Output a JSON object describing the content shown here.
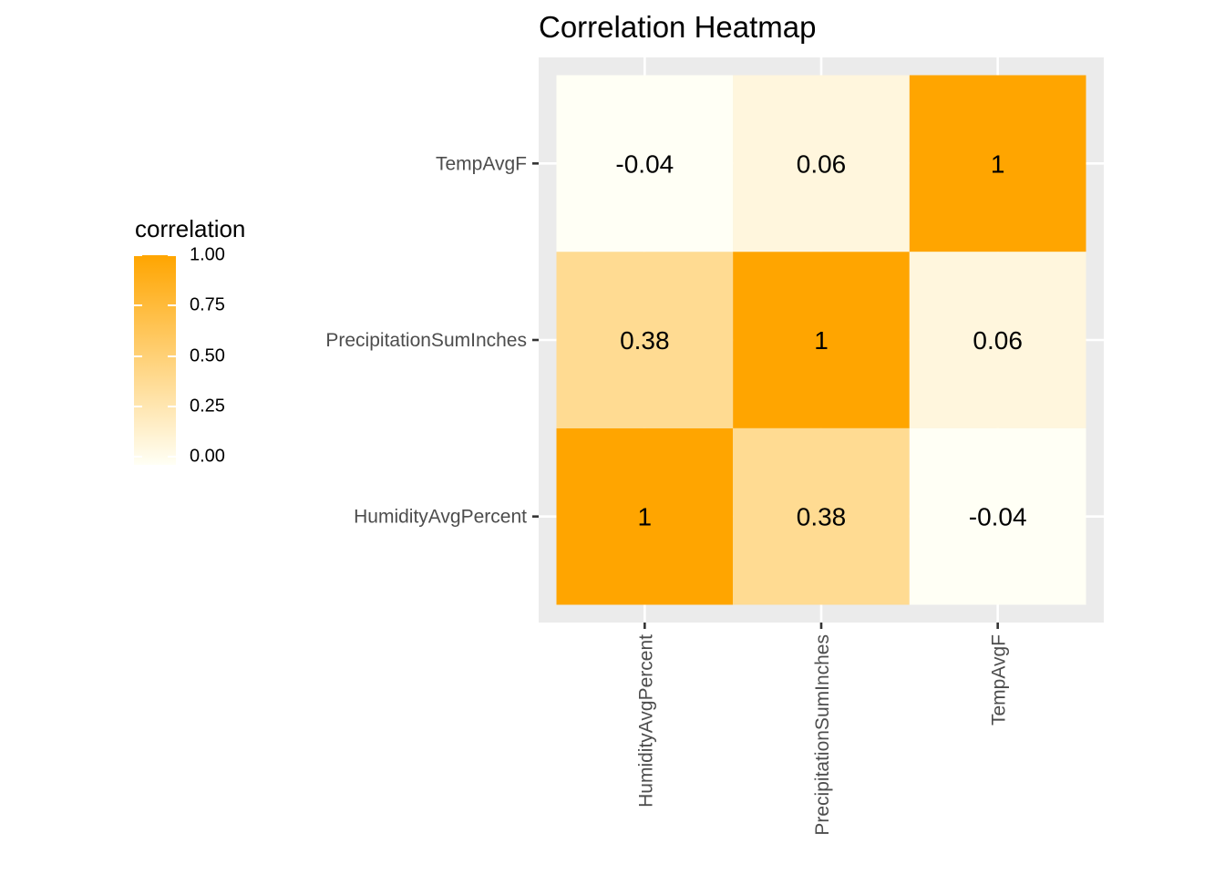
{
  "chart_data": {
    "type": "heatmap",
    "title": "Correlation Heatmap",
    "x_categories": [
      "HumidityAvgPercent",
      "PrecipitationSumInches",
      "TempAvgF"
    ],
    "y_categories": [
      "HumidityAvgPercent",
      "PrecipitationSumInches",
      "TempAvgF"
    ],
    "cells": [
      {
        "x": "HumidityAvgPercent",
        "y": "HumidityAvgPercent",
        "value": 1,
        "label": "1"
      },
      {
        "x": "PrecipitationSumInches",
        "y": "HumidityAvgPercent",
        "value": 0.38,
        "label": "0.38"
      },
      {
        "x": "TempAvgF",
        "y": "HumidityAvgPercent",
        "value": -0.04,
        "label": "-0.04"
      },
      {
        "x": "HumidityAvgPercent",
        "y": "PrecipitationSumInches",
        "value": 0.38,
        "label": "0.38"
      },
      {
        "x": "PrecipitationSumInches",
        "y": "PrecipitationSumInches",
        "value": 1,
        "label": "1"
      },
      {
        "x": "TempAvgF",
        "y": "PrecipitationSumInches",
        "value": 0.06,
        "label": "0.06"
      },
      {
        "x": "HumidityAvgPercent",
        "y": "TempAvgF",
        "value": -0.04,
        "label": "-0.04"
      },
      {
        "x": "PrecipitationSumInches",
        "y": "TempAvgF",
        "value": 0.06,
        "label": "0.06"
      },
      {
        "x": "TempAvgF",
        "y": "TempAvgF",
        "value": 1,
        "label": "1"
      }
    ],
    "legend": {
      "title": "correlation",
      "ticks": [
        "1.00",
        "0.75",
        "0.50",
        "0.25",
        "0.00"
      ],
      "tick_values": [
        1.0,
        0.75,
        0.5,
        0.25,
        0.0
      ],
      "range": [
        -0.04,
        1.0
      ],
      "placement": "left"
    },
    "color_low": "#fffff5",
    "color_high": "#ffa500",
    "panel_background": "#ebebeb",
    "grid": true
  }
}
